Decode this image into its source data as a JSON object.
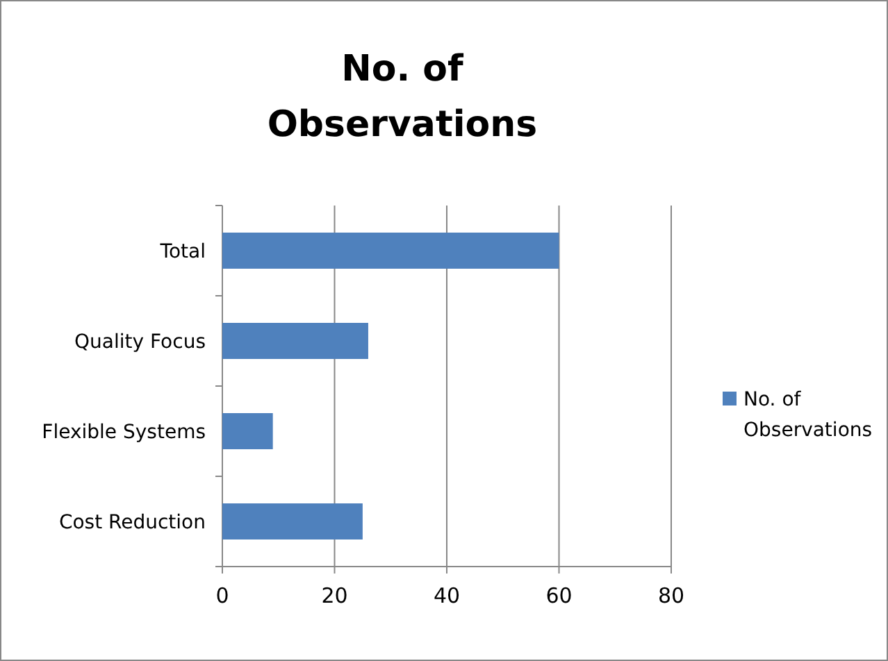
{
  "chart_data": {
    "type": "bar",
    "orientation": "horizontal",
    "title": "No. of Observations",
    "categories": [
      "Total",
      "Quality Focus",
      "Flexible Systems",
      "Cost Reduction"
    ],
    "series": [
      {
        "name": "No. of Observations",
        "color": "#4f81bd",
        "values": [
          60,
          26,
          9,
          25
        ]
      }
    ],
    "xlim": [
      0,
      80
    ],
    "xticks": [
      0,
      20,
      40,
      60,
      80
    ],
    "grid": "x",
    "legend": "right"
  }
}
